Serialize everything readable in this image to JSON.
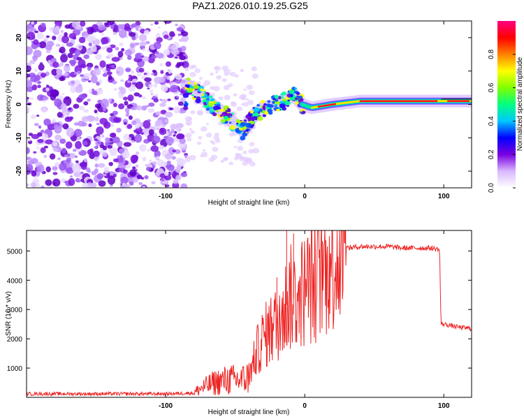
{
  "title": "PAZ1.2026.010.19.25.G25",
  "colors": {
    "snr_line": "#ee2222",
    "frame": "#000000",
    "background": "#ffffff",
    "colormap": [
      "#ffffff",
      "#d8b8ff",
      "#7a00e0",
      "#0000ff",
      "#00c8ff",
      "#00ff80",
      "#80ff00",
      "#ffff00",
      "#ff8000",
      "#ff0000",
      "#ff0080"
    ]
  },
  "chart_data": [
    {
      "type": "heatmap",
      "title": "PAZ1.2026.010.19.25.G25",
      "xlabel": "Height of straight line (km)",
      "ylabel": "Frequency (Hz)",
      "xlim": [
        -200,
        120
      ],
      "ylim": [
        -25,
        25
      ],
      "xticks": [
        -100,
        0,
        100
      ],
      "xtick_labels": [
        "-100",
        "0",
        "100"
      ],
      "yticks": [
        20,
        10,
        0,
        -10,
        -20
      ],
      "ytick_labels": [
        "20",
        "10",
        "0",
        "-10",
        "-20"
      ],
      "ridge": {
        "description_points": [
          {
            "x": -85,
            "y": 6
          },
          {
            "x": -78,
            "y": 4
          },
          {
            "x": -70,
            "y": 1
          },
          {
            "x": -60,
            "y": -2
          },
          {
            "x": -50,
            "y": -6
          },
          {
            "x": -44,
            "y": -8
          },
          {
            "x": -38,
            "y": -4
          },
          {
            "x": -30,
            "y": -1
          },
          {
            "x": -20,
            "y": 0
          },
          {
            "x": -14,
            "y": 1
          },
          {
            "x": -8,
            "y": 3
          },
          {
            "x": -2,
            "y": 0
          },
          {
            "x": 5,
            "y": -1
          },
          {
            "x": 20,
            "y": 0
          },
          {
            "x": 40,
            "y": 1
          },
          {
            "x": 80,
            "y": 1
          },
          {
            "x": 100,
            "y": 1
          },
          {
            "x": 120,
            "y": 1
          }
        ]
      },
      "colorbar": {
        "label": "Normalized spectral amplitude",
        "range": [
          0.0,
          1.0
        ],
        "ticks": [
          0.0,
          0.2,
          0.4,
          0.6,
          0.8
        ],
        "tick_labels": [
          "0.0",
          "0.2",
          "0.4",
          "0.6",
          "0.8"
        ]
      }
    },
    {
      "type": "line",
      "xlabel": "Height of straight line (km)",
      "ylabel": "SNR (10 * v/v)",
      "xlim": [
        -200,
        120
      ],
      "ylim": [
        0,
        5700
      ],
      "xticks": [
        -100,
        0,
        100
      ],
      "xtick_labels": [
        "-100",
        "0",
        "100"
      ],
      "yticks": [
        1000,
        2000,
        3000,
        4000,
        5000
      ],
      "ytick_labels": [
        "1000",
        "2000",
        "3000",
        "4000",
        "5000"
      ],
      "series": [
        {
          "name": "SNR",
          "x": [
            -200,
            -150,
            -100,
            -80,
            -75,
            -65,
            -55,
            -45,
            -40,
            -35,
            -30,
            -25,
            -20,
            -15,
            -10,
            -5,
            0,
            5,
            10,
            15,
            20,
            25,
            30,
            40,
            50,
            60,
            70,
            80,
            90,
            97,
            98,
            100,
            105,
            110,
            120
          ],
          "values": [
            120,
            120,
            120,
            150,
            300,
            500,
            600,
            600,
            700,
            1500,
            2000,
            2300,
            2500,
            3000,
            3400,
            3400,
            3700,
            3900,
            4100,
            4400,
            4700,
            4900,
            5100,
            5150,
            5150,
            5150,
            5100,
            5100,
            5100,
            5050,
            2500,
            2500,
            2450,
            2400,
            2350
          ],
          "spikes": [
            {
              "x": -20,
              "y": 4100
            },
            {
              "x": -13,
              "y": 5700
            },
            {
              "x": -8,
              "y": 5600
            }
          ]
        }
      ]
    }
  ]
}
